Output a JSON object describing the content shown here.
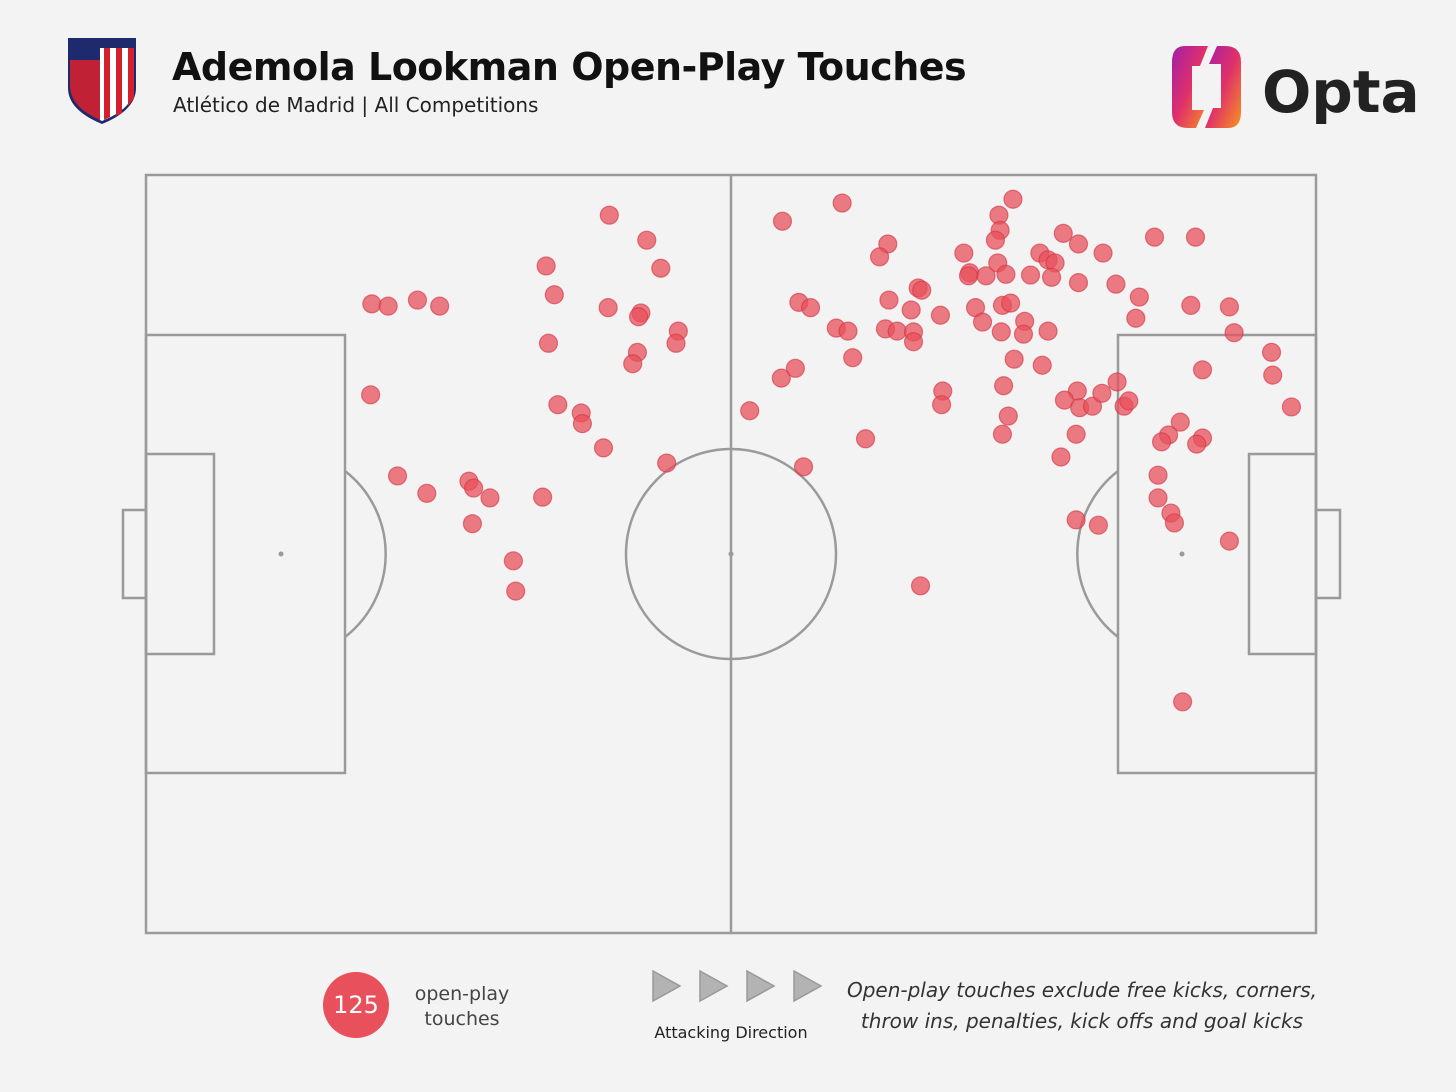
{
  "header": {
    "title": "Ademola Lookman Open-Play Touches",
    "subtitle": "Atlético de Madrid | All Competitions",
    "brand": "Opta"
  },
  "chart_data": {
    "type": "scatter",
    "color": "#e8505b",
    "xlim": [
      0,
      100
    ],
    "ylim": [
      0,
      100
    ],
    "x": [
      39.6,
      42.8,
      44.0,
      34.2,
      34.9,
      19.3,
      20.7,
      23.2,
      25.1,
      39.5,
      42.3,
      42.1,
      45.5,
      45.3,
      34.4,
      42.0,
      41.6,
      19.2,
      35.2,
      37.2,
      37.3,
      39.1,
      44.5,
      21.5,
      24.0,
      27.6,
      28.0,
      29.4,
      33.9,
      27.9,
      31.4,
      31.6,
      54.4,
      59.5,
      63.4,
      62.7,
      55.8,
      56.8,
      59.0,
      60.0,
      60.4,
      55.5,
      54.3,
      51.6,
      61.5,
      56.2,
      63.5,
      66.0,
      66.3,
      65.4,
      63.2,
      64.2,
      65.6,
      65.6,
      67.9,
      68.1,
      68.0,
      66.2,
      74.1,
      72.9,
      73.0,
      72.6,
      69.9,
      70.4,
      70.3,
      71.8,
      72.8,
      73.5,
      75.6,
      76.4,
      77.1,
      77.7,
      77.4,
      78.4,
      79.7,
      81.8,
      79.7,
      82.9,
      86.2,
      89.7,
      84.9,
      84.6,
      89.3,
      92.6,
      93.0,
      70.9,
      73.2,
      73.9,
      71.5,
      73.1,
      75.1,
      75.0,
      77.1,
      74.2,
      76.6,
      73.3,
      73.7,
      73.2,
      79.6,
      78.5,
      79.8,
      80.9,
      81.7,
      83.0,
      83.6,
      84.0,
      79.5,
      78.2,
      88.4,
      87.4,
      86.8,
      90.3,
      89.8,
      90.3,
      96.2,
      96.3,
      97.9,
      86.5,
      86.5,
      87.6,
      87.9,
      92.6,
      79.5,
      81.4,
      88.6
    ],
    "y": [
      94.7,
      91.4,
      87.7,
      88.0,
      84.2,
      83.0,
      82.7,
      83.5,
      82.7,
      82.5,
      81.8,
      81.3,
      79.4,
      77.8,
      77.8,
      76.6,
      75.1,
      71.0,
      69.7,
      68.6,
      67.2,
      64.0,
      62.0,
      60.3,
      58.0,
      59.6,
      58.7,
      57.4,
      57.5,
      54.0,
      49.1,
      45.1,
      93.9,
      96.3,
      90.9,
      89.2,
      83.2,
      82.5,
      79.8,
      79.4,
      75.9,
      74.5,
      73.2,
      68.9,
      65.2,
      61.5,
      83.5,
      85.1,
      84.8,
      82.2,
      79.7,
      79.4,
      79.3,
      78.0,
      81.5,
      71.5,
      69.7,
      45.8,
      96.8,
      94.7,
      92.7,
      91.4,
      89.7,
      87.1,
      86.7,
      86.7,
      88.4,
      86.9,
      86.8,
      89.7,
      88.8,
      88.4,
      86.5,
      92.3,
      90.9,
      89.7,
      85.8,
      85.6,
      91.8,
      91.8,
      83.9,
      81.1,
      82.8,
      82.6,
      79.2,
      82.5,
      82.8,
      83.1,
      80.6,
      79.3,
      80.7,
      79.0,
      79.4,
      75.7,
      74.9,
      72.2,
      68.2,
      65.8,
      71.5,
      70.3,
      69.3,
      69.5,
      71.2,
      72.7,
      69.5,
      70.2,
      65.8,
      62.8,
      67.4,
      65.7,
      64.8,
      65.3,
      64.5,
      74.3,
      76.6,
      73.6,
      69.4,
      60.4,
      57.4,
      55.4,
      54.1,
      51.7,
      54.5,
      53.8,
      30.5
    ],
    "total_touches": 125,
    "total_label": [
      "open-play",
      "touches"
    ],
    "direction_label": "Attacking Direction",
    "note": [
      "Open-play touches exclude free kicks, corners,",
      "throw ins, penalties, kick offs and goal kicks"
    ]
  }
}
